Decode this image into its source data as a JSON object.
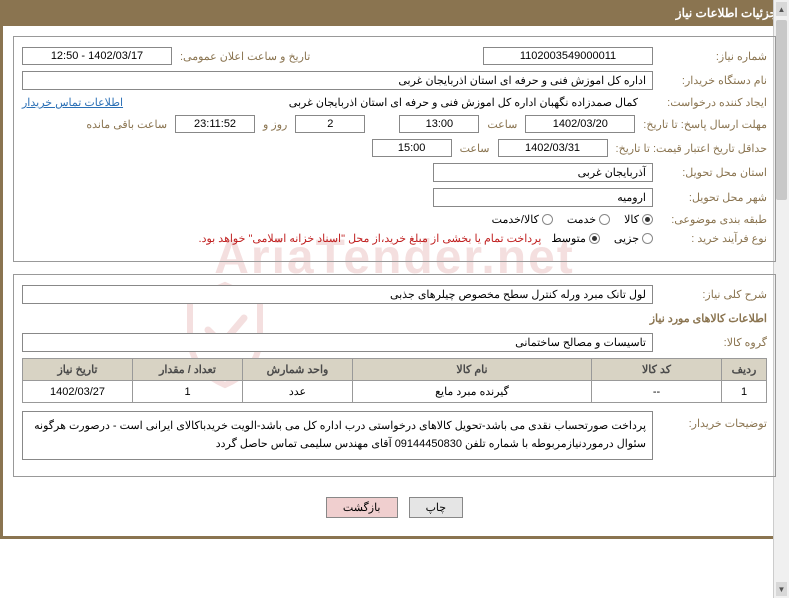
{
  "header": {
    "title": "جزئیات اطلاعات نیاز"
  },
  "watermark": "AriaTender.net",
  "requestNumber": {
    "label": "شماره نیاز:",
    "value": "1102003549000011"
  },
  "announceDateTime": {
    "label": "تاریخ و ساعت اعلان عمومی:",
    "value": "1402/03/17 - 12:50"
  },
  "buyerOrg": {
    "label": "نام دستگاه خریدار:",
    "value": "اداره کل اموزش فنی و حرفه ای استان اذربايجان غربی"
  },
  "requester": {
    "label": "ایجاد کننده درخواست:",
    "value": "کمال صمدزاده نگهبان اداره کل اموزش فنی و حرفه ای استان اذربايجان غربی"
  },
  "buyerContactLink": "اطلاعات تماس خریدار",
  "deadline": {
    "label": "مهلت ارسال پاسخ: تا تاریخ:",
    "date": "1402/03/20",
    "timeLabel": "ساعت",
    "time": "13:00",
    "daysRemaining": "2",
    "daysLabel": "روز و",
    "countdown": "23:11:52",
    "remainLabel": "ساعت باقی مانده"
  },
  "validUntil": {
    "label": "حداقل تاریخ اعتبار قیمت: تا تاریخ:",
    "date": "1402/03/31",
    "timeLabel": "ساعت",
    "time": "15:00"
  },
  "province": {
    "label": "استان محل تحویل:",
    "value": "آذربايجان غربی"
  },
  "city": {
    "label": "شهر محل تحویل:",
    "value": "اروميه"
  },
  "category": {
    "label": "طبقه بندی موضوعی:",
    "options": [
      "کالا",
      "خدمت",
      "کالا/خدمت"
    ],
    "selected": 0
  },
  "processType": {
    "label": "نوع فرآیند خرید :",
    "options": [
      "جزیی",
      "متوسط"
    ],
    "selected": 1,
    "note": "پرداخت تمام یا بخشی از مبلغ خرید،از محل \"اسناد خزانه اسلامی\" خواهد بود."
  },
  "generalDesc": {
    "label": "شرح کلی نیاز:",
    "value": "لول تانک مبرد ورله کنترل سطح مخصوص چیلرهای جذبی"
  },
  "itemsHeader": "اطلاعات کالاهای مورد نیاز",
  "goodsGroup": {
    "label": "گروه کالا:",
    "value": "تاسیسات و مصالح ساختمانی"
  },
  "table": {
    "columns": [
      "ردیف",
      "کد کالا",
      "نام کالا",
      "واحد شمارش",
      "تعداد / مقدار",
      "تاریخ نیاز"
    ],
    "widths": [
      "45px",
      "130px",
      "auto",
      "110px",
      "110px",
      "110px"
    ],
    "rows": [
      [
        "1",
        "--",
        "گيرنده مبرد مايع",
        "عدد",
        "1",
        "1402/03/27"
      ]
    ]
  },
  "buyerNotes": {
    "label": "توضیحات خریدار:",
    "value": "پرداخت صورتحساب نقدی می باشد-تحویل کالاهای درخواستی درب اداره کل می باشد-الویت خریدباکالای ایرانی است - درصورت هرگونه سئوال درموردنیازمربوطه با شماره تلفن 09144450830 آقای مهندس سلیمی تماس حاصل گردد"
  },
  "buttons": {
    "print": "چاپ",
    "back": "بازگشت"
  },
  "colors": {
    "headerBg": "#8a7450",
    "labelColor": "#8a7450",
    "linkColor": "#2a6fb5",
    "noteColor": "#c02020",
    "tableHeaderBg": "#d8d3c4",
    "btnBackBg": "#f0cfcf"
  }
}
